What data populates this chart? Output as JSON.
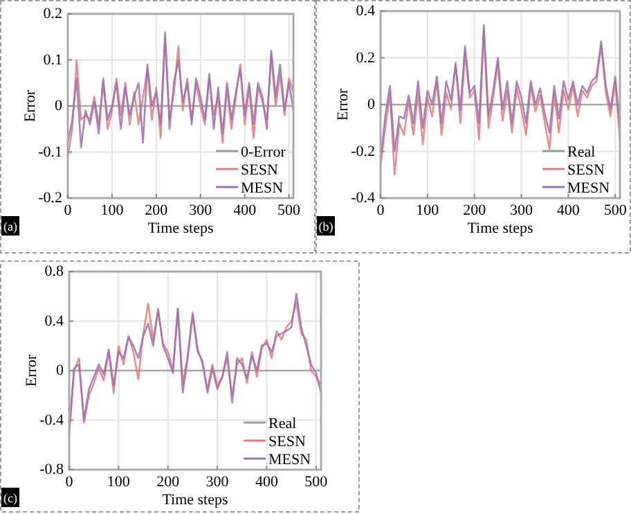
{
  "chart_data": [
    {
      "type": "line",
      "xlabel": "Time steps",
      "ylabel": "Error",
      "xlim": [
        0,
        510
      ],
      "xticks": [
        0,
        100,
        200,
        300,
        400,
        500
      ],
      "ylim": [
        -0.2,
        0.2
      ],
      "yticks": [
        -0.2,
        -0.1,
        0,
        0.1,
        0.2
      ],
      "grid": true,
      "legend": "bottom right",
      "annotations": [
        "(a)"
      ],
      "series": [
        {
          "name": "0-Error",
          "color": "#9a9a9a",
          "x": [
            0,
            510
          ],
          "values": [
            0,
            0
          ]
        },
        {
          "name": "SESN",
          "color": "#e07a7a",
          "x": [
            0,
            10,
            20,
            30,
            40,
            50,
            60,
            70,
            80,
            90,
            100,
            110,
            120,
            130,
            140,
            150,
            160,
            170,
            180,
            190,
            200,
            210,
            220,
            230,
            240,
            250,
            260,
            270,
            280,
            290,
            300,
            310,
            320,
            330,
            340,
            350,
            360,
            370,
            380,
            390,
            400,
            410,
            420,
            430,
            440,
            450,
            460,
            470,
            480,
            490,
            500,
            510
          ],
          "values": [
            -0.11,
            -0.05,
            0.1,
            -0.03,
            -0.02,
            -0.03,
            0.02,
            -0.04,
            0.05,
            -0.05,
            -0.01,
            0.06,
            -0.02,
            0.05,
            -0.04,
            0.03,
            -0.04,
            0.02,
            0.08,
            -0.03,
            0.04,
            -0.07,
            0.15,
            -0.03,
            0.03,
            0.13,
            -0.01,
            0.06,
            -0.03,
            0.05,
            0.0,
            -0.04,
            0.06,
            -0.02,
            0.02,
            -0.08,
            0.04,
            -0.05,
            0.02,
            0.09,
            -0.04,
            0.04,
            -0.07,
            0.04,
            0.01,
            -0.03,
            0.11,
            0.0,
            0.07,
            -0.02,
            0.06,
            0.03
          ]
        },
        {
          "name": "MESN",
          "color": "#9b6fb0",
          "x": [
            0,
            10,
            20,
            30,
            40,
            50,
            60,
            70,
            80,
            90,
            100,
            110,
            120,
            130,
            140,
            150,
            160,
            170,
            180,
            190,
            200,
            210,
            220,
            230,
            240,
            250,
            260,
            270,
            280,
            290,
            300,
            310,
            320,
            330,
            340,
            350,
            360,
            370,
            380,
            390,
            400,
            410,
            420,
            430,
            440,
            450,
            460,
            470,
            480,
            490,
            500,
            510
          ],
          "values": [
            -0.08,
            -0.03,
            0.06,
            -0.09,
            -0.01,
            -0.04,
            0.01,
            -0.06,
            0.06,
            -0.03,
            0.0,
            0.05,
            -0.05,
            0.04,
            -0.02,
            0.02,
            0.05,
            -0.08,
            0.09,
            0.0,
            0.03,
            -0.04,
            0.16,
            -0.05,
            0.05,
            0.1,
            0.01,
            0.05,
            -0.04,
            0.06,
            0.02,
            -0.03,
            0.07,
            -0.05,
            0.04,
            -0.06,
            0.05,
            -0.03,
            0.03,
            0.08,
            -0.02,
            0.05,
            -0.04,
            0.05,
            0.02,
            -0.05,
            0.12,
            0.02,
            0.09,
            -0.01,
            0.05,
            -0.01
          ]
        }
      ]
    },
    {
      "type": "line",
      "xlabel": "Time steps",
      "ylabel": "Error",
      "xlim": [
        0,
        510
      ],
      "xticks": [
        0,
        100,
        200,
        300,
        400,
        500
      ],
      "ylim": [
        -0.4,
        0.4
      ],
      "yticks": [
        -0.4,
        -0.2,
        0,
        0.2,
        0.4
      ],
      "grid": true,
      "legend": "bottom right",
      "annotations": [
        "(b)"
      ],
      "series": [
        {
          "name": "Real",
          "color": "#9a9a9a",
          "x": [
            0,
            510
          ],
          "values": [
            0,
            0
          ]
        },
        {
          "name": "SESN",
          "color": "#e07a7a",
          "x": [
            0,
            10,
            20,
            30,
            40,
            50,
            60,
            70,
            80,
            90,
            100,
            110,
            120,
            130,
            140,
            150,
            160,
            170,
            180,
            190,
            200,
            210,
            220,
            230,
            240,
            250,
            260,
            270,
            280,
            290,
            300,
            310,
            320,
            330,
            340,
            350,
            360,
            370,
            380,
            390,
            400,
            410,
            420,
            430,
            440,
            450,
            460,
            470,
            480,
            490,
            500,
            510
          ],
          "values": [
            -0.26,
            -0.1,
            0.05,
            -0.3,
            -0.08,
            -0.13,
            0.02,
            -0.13,
            0.05,
            -0.17,
            0.03,
            -0.05,
            0.1,
            -0.13,
            0.05,
            -0.02,
            0.18,
            -0.08,
            0.22,
            0.03,
            0.06,
            -0.15,
            0.32,
            -0.1,
            0.03,
            0.18,
            -0.07,
            0.06,
            -0.12,
            0.07,
            -0.02,
            -0.13,
            0.08,
            -0.03,
            0.04,
            -0.08,
            -0.19,
            0.05,
            -0.12,
            0.06,
            -0.02,
            0.08,
            -0.05,
            0.06,
            0.03,
            0.08,
            0.1,
            0.25,
            0.05,
            -0.05,
            0.1,
            -0.15
          ]
        },
        {
          "name": "MESN",
          "color": "#9b6fb0",
          "x": [
            0,
            10,
            20,
            30,
            40,
            50,
            60,
            70,
            80,
            90,
            100,
            110,
            120,
            130,
            140,
            150,
            160,
            170,
            180,
            190,
            200,
            210,
            220,
            230,
            240,
            250,
            260,
            270,
            280,
            290,
            300,
            310,
            320,
            330,
            340,
            350,
            360,
            370,
            380,
            390,
            400,
            410,
            420,
            430,
            440,
            450,
            460,
            470,
            480,
            490,
            500,
            510
          ],
          "values": [
            -0.24,
            -0.05,
            0.08,
            -0.2,
            -0.05,
            -0.06,
            0.04,
            -0.08,
            0.1,
            -0.1,
            0.06,
            0.0,
            0.12,
            -0.08,
            0.1,
            0.02,
            0.17,
            -0.02,
            0.25,
            0.05,
            0.08,
            -0.08,
            0.34,
            -0.05,
            0.06,
            0.2,
            -0.02,
            0.1,
            -0.08,
            0.1,
            0.03,
            -0.08,
            0.1,
            0.0,
            0.07,
            -0.04,
            -0.12,
            0.08,
            -0.06,
            0.1,
            0.02,
            0.1,
            0.0,
            0.08,
            0.05,
            0.1,
            0.12,
            0.27,
            0.08,
            -0.02,
            0.12,
            -0.1
          ]
        }
      ]
    },
    {
      "type": "line",
      "xlabel": "Time steps",
      "ylabel": "Error",
      "xlim": [
        0,
        510
      ],
      "xticks": [
        0,
        100,
        200,
        300,
        400,
        500
      ],
      "ylim": [
        -0.8,
        0.8
      ],
      "yticks": [
        -0.8,
        -0.4,
        0,
        0.4,
        0.8
      ],
      "grid": true,
      "legend": "bottom right",
      "annotations": [
        "(c)"
      ],
      "series": [
        {
          "name": "Real",
          "color": "#9a9a9a",
          "x": [
            0,
            510
          ],
          "values": [
            0,
            0
          ]
        },
        {
          "name": "SESN",
          "color": "#e07a7a",
          "x": [
            0,
            10,
            20,
            30,
            40,
            50,
            60,
            70,
            80,
            90,
            100,
            110,
            120,
            130,
            140,
            150,
            160,
            170,
            180,
            190,
            200,
            210,
            220,
            230,
            240,
            250,
            260,
            270,
            280,
            290,
            300,
            310,
            320,
            330,
            340,
            350,
            360,
            370,
            380,
            390,
            400,
            410,
            420,
            430,
            440,
            450,
            460,
            470,
            480,
            490,
            500,
            510
          ],
          "values": [
            -0.52,
            0.0,
            0.1,
            -0.42,
            -0.2,
            -0.1,
            0.02,
            -0.08,
            0.15,
            -0.18,
            0.2,
            0.05,
            0.28,
            0.15,
            -0.07,
            0.3,
            0.54,
            0.25,
            0.48,
            0.22,
            0.15,
            0.0,
            0.5,
            -0.1,
            0.12,
            0.47,
            0.18,
            0.05,
            -0.15,
            0.05,
            -0.12,
            -0.05,
            0.1,
            -0.2,
            0.05,
            0.1,
            -0.1,
            0.15,
            -0.05,
            0.18,
            0.25,
            0.1,
            0.32,
            0.25,
            0.35,
            0.4,
            0.55,
            0.3,
            0.25,
            0.0,
            -0.05,
            -0.12
          ]
        },
        {
          "name": "MESN",
          "color": "#9b6fb0",
          "x": [
            0,
            10,
            20,
            30,
            40,
            50,
            60,
            70,
            80,
            90,
            100,
            110,
            120,
            130,
            140,
            150,
            160,
            170,
            180,
            190,
            200,
            210,
            220,
            230,
            240,
            250,
            260,
            270,
            280,
            290,
            300,
            310,
            320,
            330,
            340,
            350,
            360,
            370,
            380,
            390,
            400,
            410,
            420,
            430,
            440,
            450,
            460,
            470,
            480,
            490,
            500,
            510
          ],
          "values": [
            -0.48,
            0.02,
            0.05,
            -0.4,
            -0.15,
            -0.05,
            0.05,
            -0.03,
            0.17,
            -0.12,
            0.15,
            0.1,
            0.27,
            0.2,
            0.1,
            0.28,
            0.38,
            0.2,
            0.5,
            0.2,
            0.1,
            -0.02,
            0.5,
            -0.18,
            0.1,
            0.45,
            0.15,
            0.08,
            -0.18,
            0.02,
            -0.15,
            -0.05,
            0.15,
            -0.26,
            0.1,
            0.05,
            -0.06,
            0.12,
            0.0,
            0.2,
            0.22,
            0.15,
            0.28,
            0.3,
            0.32,
            0.35,
            0.62,
            0.35,
            0.2,
            0.05,
            -0.02,
            -0.18
          ]
        }
      ]
    }
  ]
}
